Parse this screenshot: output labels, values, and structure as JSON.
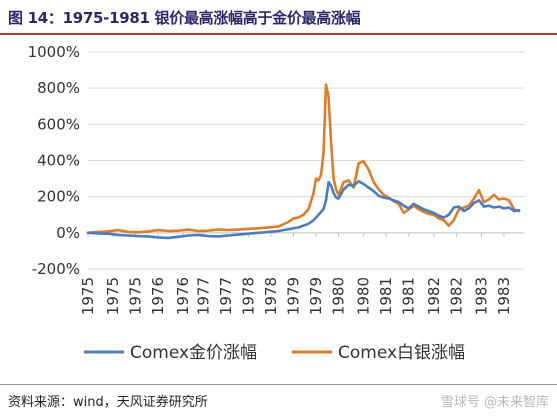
{
  "header": {
    "title": "图 14：1975-1981 银价最高涨幅高于金价最高涨幅"
  },
  "footer": {
    "source": "资料来源：wind，天风证券研究所",
    "watermark": "雪球号 @未来智库"
  },
  "chart_data": {
    "type": "line",
    "title": "图 14：1975-1981 银价最高涨幅高于金价最高涨幅",
    "xlabel": "",
    "ylabel": "",
    "ylim": [
      -200,
      1000
    ],
    "yticks": [
      -200,
      0,
      200,
      400,
      600,
      800,
      1000
    ],
    "ytick_labels": [
      "-200%",
      "0%",
      "200%",
      "400%",
      "600%",
      "800%",
      "1000%"
    ],
    "xlim": [
      1975.0,
      1983.7
    ],
    "xtick_labels": [
      "1975",
      "1975",
      "1975",
      "1976",
      "1976",
      "1977",
      "1977",
      "1978",
      "1978",
      "1979",
      "1979",
      "1980",
      "1980",
      "1981",
      "1981",
      "1982",
      "1982",
      "1983",
      "1983"
    ],
    "xtick_positions": [
      1975.0,
      1975.5,
      1975.95,
      1976.4,
      1976.9,
      1977.3,
      1977.75,
      1978.2,
      1978.65,
      1979.1,
      1979.55,
      1980.0,
      1980.5,
      1980.95,
      1981.4,
      1981.9,
      1982.35,
      1982.85,
      1983.3
    ],
    "grid": "horizontal",
    "legend_position": "bottom",
    "colors": {
      "gold": "#4a7ebb",
      "silver": "#e07b28",
      "grid": "#d9d9d9"
    },
    "series": [
      {
        "name": "Comex金价涨幅",
        "color": "#4a7ebb",
        "x": [
          1975.0,
          1975.2,
          1975.4,
          1975.6,
          1975.8,
          1976.0,
          1976.2,
          1976.4,
          1976.6,
          1976.8,
          1977.0,
          1977.2,
          1977.4,
          1977.6,
          1977.8,
          1978.0,
          1978.2,
          1978.4,
          1978.6,
          1978.8,
          1979.0,
          1979.2,
          1979.4,
          1979.5,
          1979.6,
          1979.7,
          1979.75,
          1979.8,
          1979.85,
          1979.9,
          1979.95,
          1980.0,
          1980.1,
          1980.2,
          1980.3,
          1980.4,
          1980.5,
          1980.6,
          1980.7,
          1980.8,
          1980.9,
          1981.0,
          1981.1,
          1981.2,
          1981.3,
          1981.4,
          1981.5,
          1981.6,
          1981.7,
          1981.8,
          1981.9,
          1982.0,
          1982.1,
          1982.2,
          1982.3,
          1982.4,
          1982.5,
          1982.6,
          1982.7,
          1982.8,
          1982.9,
          1983.0,
          1983.1,
          1983.2,
          1983.3,
          1983.4,
          1983.5,
          1983.6
        ],
        "values": [
          0,
          -3,
          -5,
          -12,
          -15,
          -18,
          -20,
          -25,
          -28,
          -22,
          -15,
          -12,
          -18,
          -20,
          -15,
          -10,
          -5,
          0,
          5,
          10,
          20,
          30,
          50,
          70,
          100,
          130,
          180,
          280,
          260,
          220,
          195,
          190,
          240,
          265,
          260,
          285,
          270,
          250,
          230,
          205,
          195,
          190,
          180,
          170,
          150,
          135,
          160,
          145,
          130,
          120,
          110,
          95,
          85,
          100,
          140,
          145,
          120,
          135,
          165,
          180,
          145,
          150,
          140,
          145,
          135,
          140,
          120,
          125
        ]
      },
      {
        "name": "Comex白银涨幅",
        "color": "#e07b28",
        "x": [
          1975.0,
          1975.2,
          1975.4,
          1975.6,
          1975.8,
          1976.0,
          1976.2,
          1976.4,
          1976.6,
          1976.8,
          1977.0,
          1977.2,
          1977.4,
          1977.6,
          1977.8,
          1978.0,
          1978.2,
          1978.4,
          1978.6,
          1978.8,
          1979.0,
          1979.1,
          1979.2,
          1979.3,
          1979.4,
          1979.5,
          1979.55,
          1979.6,
          1979.65,
          1979.7,
          1979.75,
          1979.8,
          1979.85,
          1979.9,
          1979.95,
          1980.0,
          1980.1,
          1980.2,
          1980.3,
          1980.4,
          1980.5,
          1980.6,
          1980.7,
          1980.8,
          1980.9,
          1981.0,
          1981.1,
          1981.2,
          1981.3,
          1981.4,
          1981.5,
          1981.6,
          1981.7,
          1981.8,
          1981.9,
          1982.0,
          1982.1,
          1982.2,
          1982.3,
          1982.4,
          1982.5,
          1982.6,
          1982.7,
          1982.8,
          1982.9,
          1983.0,
          1983.1,
          1983.2,
          1983.3,
          1983.4,
          1983.5,
          1983.6
        ],
        "values": [
          0,
          5,
          8,
          15,
          5,
          3,
          8,
          15,
          10,
          12,
          18,
          10,
          12,
          18,
          15,
          18,
          22,
          25,
          30,
          35,
          60,
          80,
          85,
          100,
          130,
          220,
          300,
          290,
          320,
          440,
          820,
          750,
          500,
          300,
          240,
          210,
          280,
          290,
          250,
          385,
          395,
          350,
          280,
          240,
          210,
          195,
          175,
          160,
          110,
          130,
          150,
          130,
          115,
          105,
          100,
          80,
          70,
          40,
          70,
          130,
          140,
          150,
          190,
          235,
          170,
          185,
          210,
          185,
          190,
          180,
          130,
          120
        ]
      }
    ]
  }
}
